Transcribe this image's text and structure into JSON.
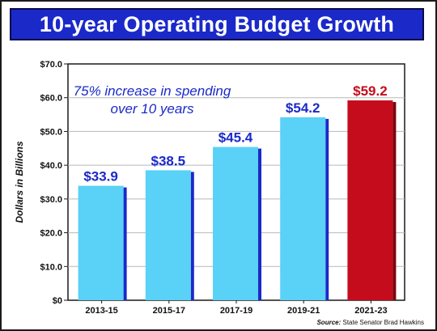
{
  "title": "10-year Operating Budget Growth",
  "annotation": {
    "line1": "75% increase in spending",
    "line2": "over 10 years"
  },
  "source_label": "Source:",
  "source_text": "State Senator Brad Hawkins",
  "colors": {
    "title_bg": "#1b29c9",
    "bar": "#5ad1f7",
    "bar_shadow": "#1b29c9",
    "highlight_bar": "#c40c1c",
    "highlight_shadow": "#7a0610",
    "label_blue": "#1b29c9",
    "label_red": "#c40c1c"
  },
  "chart_data": {
    "type": "bar",
    "categories": [
      "2013-15",
      "2015-17",
      "2017-19",
      "2019-21",
      "2021-23"
    ],
    "values": [
      33.9,
      38.5,
      45.4,
      54.2,
      59.2
    ],
    "data_labels": [
      "$33.9",
      "$38.5",
      "$45.4",
      "$54.2",
      "$59.2"
    ],
    "highlight_index": 4,
    "ylabel": "Dollars in Billions",
    "ylim": [
      0,
      70
    ],
    "yticks": [
      0,
      10,
      20,
      30,
      40,
      50,
      60,
      70
    ],
    "ytick_labels": [
      "$0",
      "$10.0",
      "$20.0",
      "$30.0",
      "$40.0",
      "$50.0",
      "$60.0",
      "$70.0"
    ],
    "grid": true
  }
}
